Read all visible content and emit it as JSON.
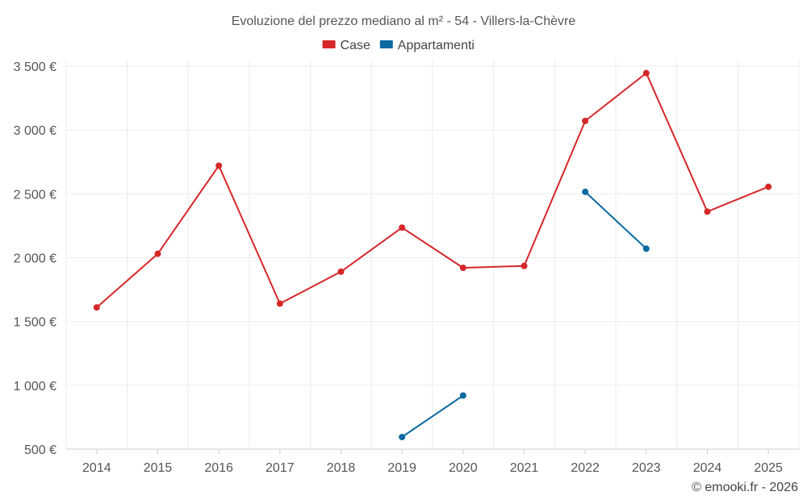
{
  "chart_data": {
    "type": "line",
    "title": "Evoluzione del prezzo mediano al m² - 54 - Villers-la-Chèvre",
    "categories": [
      "2014",
      "2015",
      "2016",
      "2017",
      "2018",
      "2019",
      "2020",
      "2021",
      "2022",
      "2023",
      "2024",
      "2025"
    ],
    "series": [
      {
        "name": "Case",
        "color": "#d62728",
        "values": [
          1610,
          2030,
          2720,
          1640,
          1890,
          2235,
          1920,
          1935,
          3070,
          3445,
          2360,
          2555
        ]
      },
      {
        "name": "Appartamenti",
        "color": "#0a6aa1",
        "values": [
          null,
          null,
          null,
          null,
          null,
          595,
          920,
          null,
          2515,
          2070,
          null,
          null
        ]
      }
    ],
    "y_ticks": [
      "500 €",
      "1 000 €",
      "1 500 €",
      "2 000 €",
      "2 500 €",
      "3 000 €",
      "3 500 €"
    ],
    "y_tick_values": [
      500,
      1000,
      1500,
      2000,
      2500,
      3000,
      3500
    ],
    "ylim": [
      500,
      3550
    ],
    "grid": true,
    "legend_position": "top-center"
  },
  "credit": "© emooki.fr - 2026"
}
